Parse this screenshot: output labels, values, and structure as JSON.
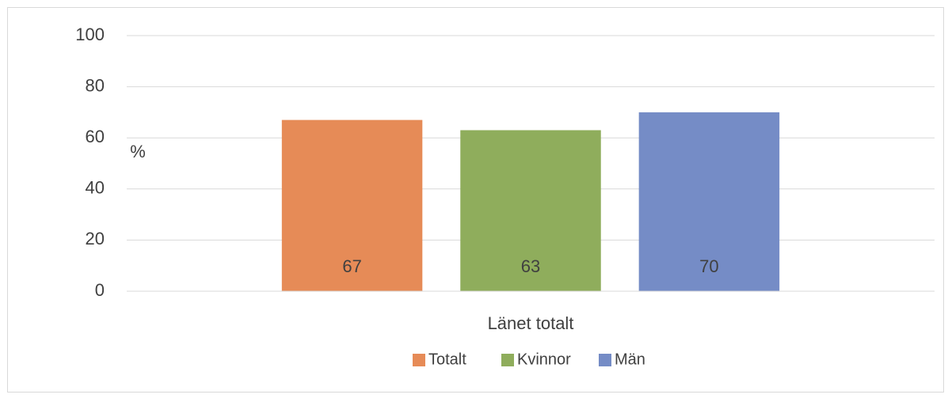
{
  "chart_data": {
    "type": "bar",
    "y_label": "%",
    "categories": [
      "Länet totalt"
    ],
    "series": [
      {
        "name": "Totalt",
        "color": "#e68b57",
        "values": [
          67
        ]
      },
      {
        "name": "Kvinnor",
        "color": "#8fad5c",
        "values": [
          63
        ]
      },
      {
        "name": "Män",
        "color": "#758cc6",
        "values": [
          70
        ]
      }
    ],
    "ylim": [
      0,
      100
    ],
    "yticks": [
      0,
      20,
      40,
      60,
      80,
      100
    ],
    "grid": true,
    "legend": "bottom"
  }
}
